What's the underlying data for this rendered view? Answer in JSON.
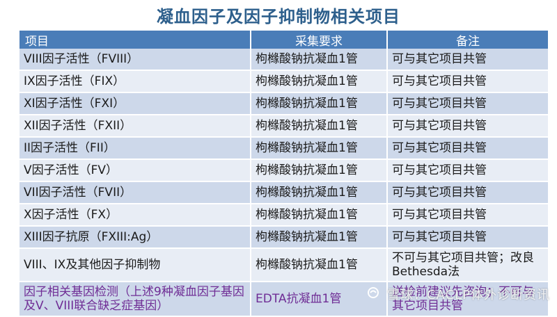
{
  "title": "凝血因子及因子抑制物相关项目",
  "table": {
    "headers": [
      "项目",
      "采集要求",
      "备注"
    ],
    "rows": [
      [
        "VIII因子活性（FVIII）",
        "枸橼酸钠抗凝血1管",
        "可与其它项目共管"
      ],
      [
        "IX因子活性（FIX）",
        "枸橼酸钠抗凝血1管",
        "可与其它项目共管"
      ],
      [
        "XI因子活性（FXI）",
        "枸橼酸钠抗凝血1管",
        "可与其它项目共管"
      ],
      [
        "XII因子活性（FXII）",
        "枸橼酸钠抗凝血1管",
        "可与其它项目共管"
      ],
      [
        "II因子活性（FII）",
        "枸橼酸钠抗凝血1管",
        "可与其它项目共管"
      ],
      [
        "V因子活性（FV）",
        "枸橼酸钠抗凝血1管",
        "可与其它项目共管"
      ],
      [
        "VII因子活性（FVII）",
        "枸橼酸钠抗凝血1管",
        "可与其它项目共管"
      ],
      [
        "X因子活性（FX）",
        "枸橼酸钠抗凝血1管",
        "可与其它项目共管"
      ],
      [
        "XIII因子抗原（FXIII:Ag）",
        "枸橼酸钠抗凝血1管",
        "可与其它项目共管"
      ],
      [
        "VIII、IX及其他因子抑制物",
        "枸橼酸钠抗凝血1管",
        "不可与其它项目共管；改良Bethesda法"
      ],
      [
        "因子相关基因检测（上述9种凝血因子基因及V、VIII联合缺乏症基因）",
        "EDTA抗凝血1管",
        "送检前建议先咨询；不可与其它项目共管"
      ]
    ]
  },
  "watermark": {
    "icon": "snowball-icon",
    "text": "雪球：CACLP体外诊断资讯"
  }
}
